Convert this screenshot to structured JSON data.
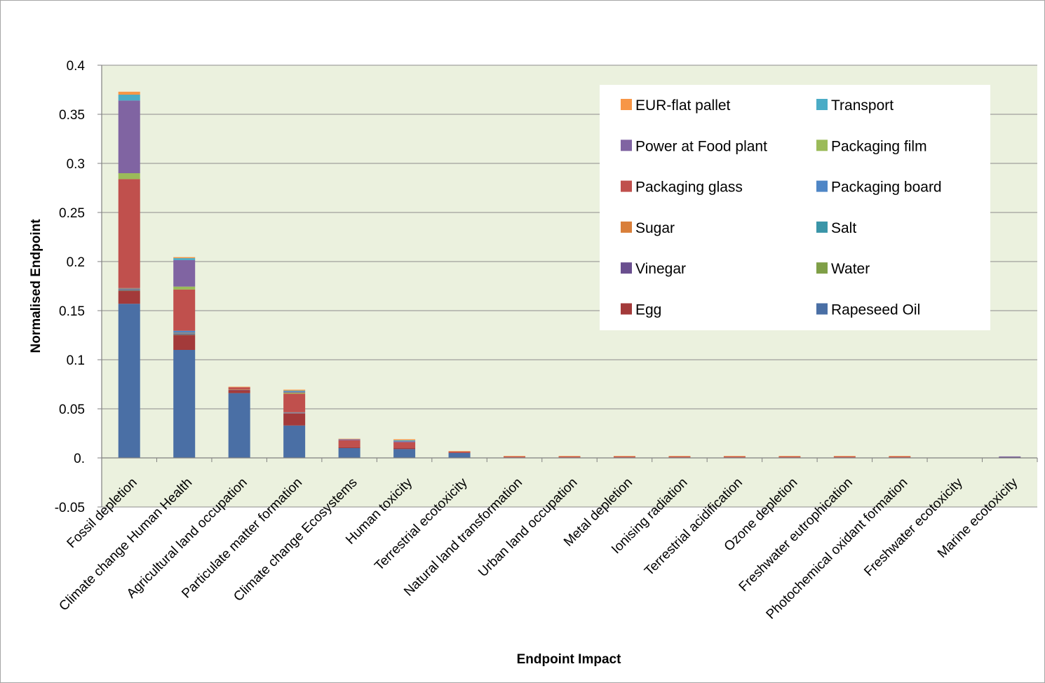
{
  "chart_data": {
    "type": "bar",
    "stacked": true,
    "title": "",
    "xlabel": "Endpoint Impact",
    "ylabel": "Normalised Endpoint",
    "ylim": [
      -0.05,
      0.4
    ],
    "yticks": [
      {
        "value": 0.4,
        "label": "0.4"
      },
      {
        "value": 0.35,
        "label": "0.35"
      },
      {
        "value": 0.3,
        "label": "0.3"
      },
      {
        "value": 0.25,
        "label": "0.25"
      },
      {
        "value": 0.2,
        "label": "0.2"
      },
      {
        "value": 0.15,
        "label": "0.15"
      },
      {
        "value": 0.1,
        "label": "0.1"
      },
      {
        "value": 0.05,
        "label": "0.05"
      },
      {
        "value": 0.0,
        "label": "0."
      },
      {
        "value": -0.05,
        "label": "-0.05"
      }
    ],
    "grid": true,
    "plot_background": "#ebf1de",
    "legend_position": "top-right",
    "categories": [
      "Fossil depletion",
      "Climate change Human Health",
      "Agricultural land occupation",
      "Particulate matter formation",
      "Climate change Ecosystems",
      "Human toxicity",
      "Terrestrial ecotoxicity",
      "Natural land transformation",
      "Urban land occupation",
      "Metal depletion",
      "Ionising radiation",
      "Terrestrial acidification",
      "Ozone depletion",
      "Freshwater eutrophication",
      "Photochemical oxidant formation",
      "Freshwater ecotoxicity",
      "Marine ecotoxicity"
    ],
    "series": [
      {
        "name": "Rapeseed Oil",
        "color": "#4a6fa5",
        "values": [
          0.157,
          0.11,
          0.066,
          0.033,
          0.01,
          0.009,
          0.005,
          0,
          0,
          0,
          0,
          0,
          0,
          0,
          0,
          0,
          0
        ]
      },
      {
        "name": "Egg",
        "color": "#a33a3a",
        "values": [
          0.013,
          0.015,
          0.003,
          0.012,
          0.001,
          0.001,
          0.0005,
          0,
          0,
          0,
          0,
          0,
          0,
          0,
          0,
          0,
          0
        ]
      },
      {
        "name": "Water",
        "color": "#7f9f47",
        "values": [
          0.0005,
          0.0005,
          0,
          0,
          0,
          0,
          0,
          0,
          0,
          0,
          0,
          0,
          0,
          0,
          0,
          0,
          0
        ]
      },
      {
        "name": "Vinegar",
        "color": "#6a4f8f",
        "values": [
          0.001,
          0.001,
          0.0005,
          0.0005,
          0,
          0,
          0,
          0,
          0,
          0,
          0,
          0,
          0,
          0,
          0,
          0,
          0.001
        ]
      },
      {
        "name": "Salt",
        "color": "#3a95a8",
        "values": [
          0.0005,
          0.0005,
          0,
          0,
          0,
          0,
          0,
          0,
          0,
          0,
          0,
          0,
          0,
          0,
          0,
          0,
          0
        ]
      },
      {
        "name": "Sugar",
        "color": "#d97f3a",
        "values": [
          0.0005,
          0.0005,
          0.0005,
          0.0005,
          0,
          0,
          0,
          0.0005,
          0.0005,
          0.0005,
          0.0005,
          0.0005,
          0.0005,
          0.0005,
          0.0005,
          0,
          0
        ]
      },
      {
        "name": "Packaging board",
        "color": "#4f86c6",
        "values": [
          0.0005,
          0.002,
          0,
          0.0005,
          0,
          0,
          0,
          0,
          0,
          0,
          0,
          0,
          0,
          0,
          0,
          0,
          0
        ]
      },
      {
        "name": "Packaging glass",
        "color": "#c0504d",
        "values": [
          0.111,
          0.042,
          0.002,
          0.019,
          0.007,
          0.006,
          0.001,
          0.001,
          0.001,
          0.001,
          0.001,
          0.001,
          0.001,
          0.001,
          0.001,
          0,
          0
        ]
      },
      {
        "name": "Packaging film",
        "color": "#9bbb59",
        "values": [
          0.006,
          0.003,
          0,
          0.001,
          0,
          0,
          0,
          0,
          0,
          0,
          0,
          0,
          0,
          0,
          0,
          0,
          0
        ]
      },
      {
        "name": "Power at Food plant",
        "color": "#8064a2",
        "values": [
          0.074,
          0.027,
          0,
          0.001,
          0.001,
          0.001,
          0,
          0,
          0,
          0,
          0,
          0,
          0,
          0,
          0,
          0,
          0.0005
        ]
      },
      {
        "name": "Transport",
        "color": "#4bacc6",
        "values": [
          0.006,
          0.002,
          0,
          0.001,
          0,
          0.001,
          0,
          0,
          0,
          0,
          0,
          0,
          0,
          0,
          0,
          0,
          0
        ]
      },
      {
        "name": "EUR-flat pallet",
        "color": "#f79646",
        "values": [
          0.003,
          0.001,
          0.0005,
          0.001,
          0.0005,
          0.001,
          0.0005,
          0.0005,
          0.0005,
          0.0005,
          0.0005,
          0.0005,
          0.0005,
          0.0005,
          0.0005,
          0,
          0
        ]
      }
    ],
    "legend_order": [
      "EUR-flat pallet",
      "Transport",
      "Power at Food plant",
      "Packaging film",
      "Packaging glass",
      "Packaging board",
      "Sugar",
      "Salt",
      "Vinegar",
      "Water",
      "Egg",
      "Rapeseed Oil"
    ]
  }
}
